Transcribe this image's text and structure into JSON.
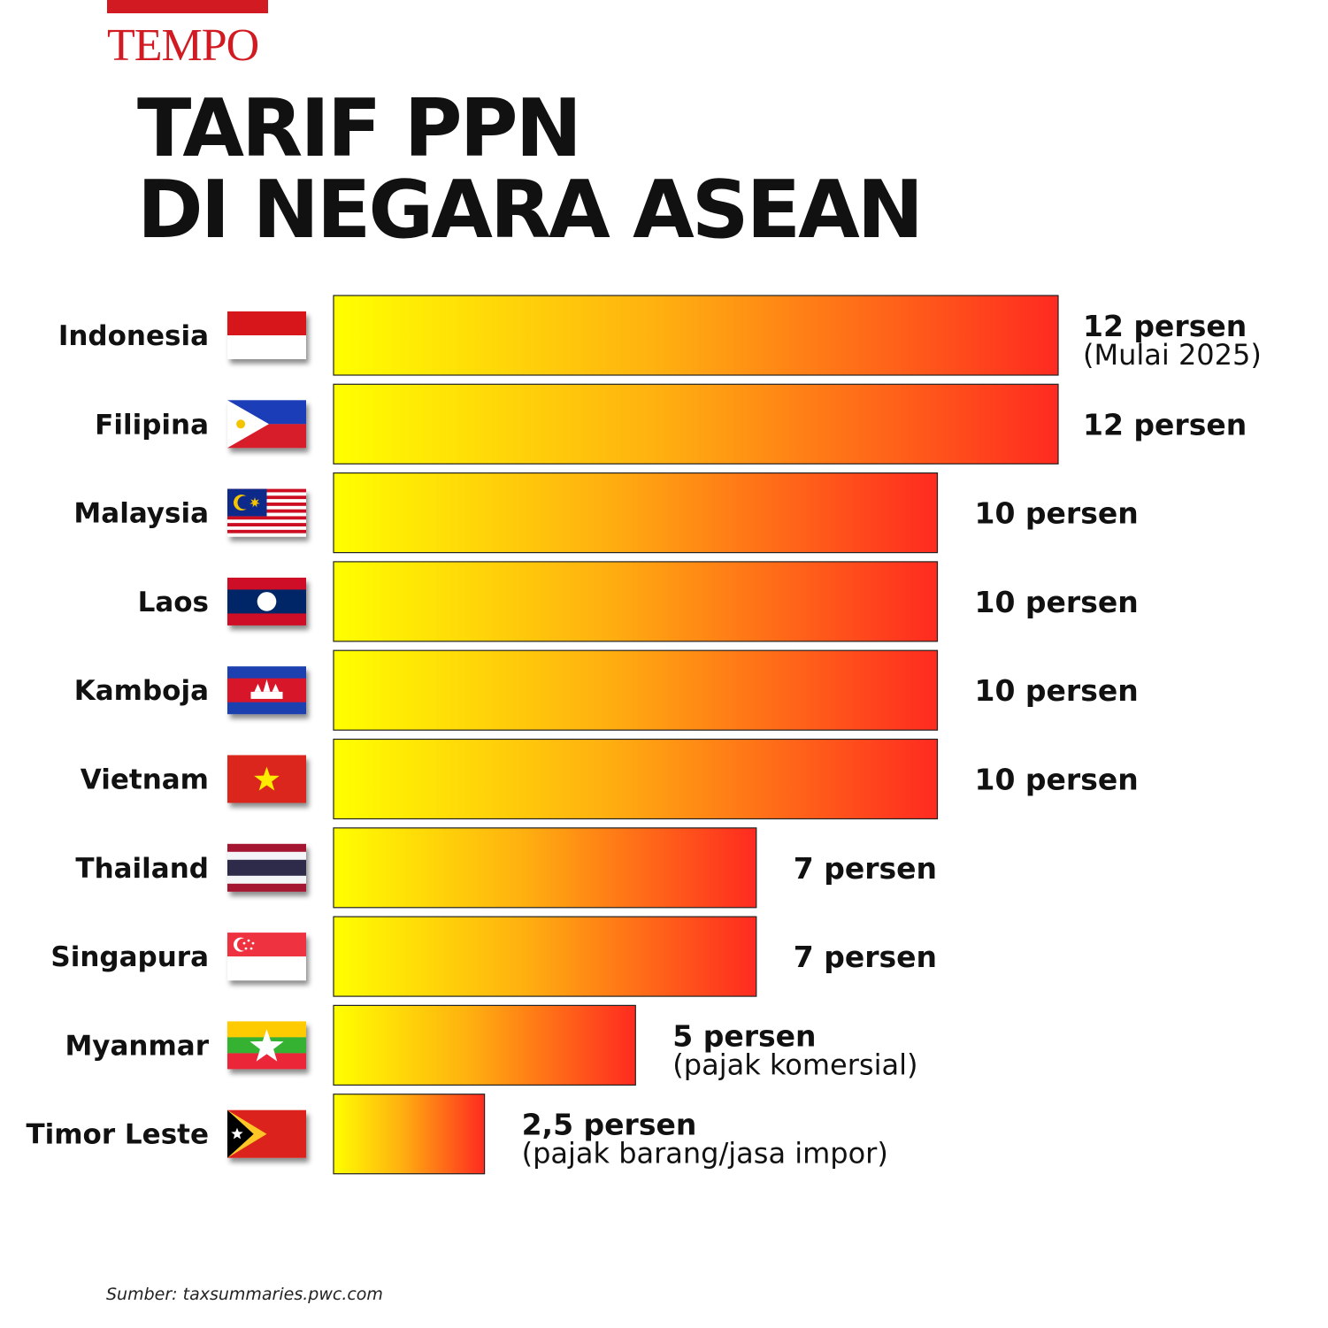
{
  "brand": {
    "name": "TEMPO",
    "color": "#d21a22"
  },
  "title_line1": "TARIF PPN",
  "title_line2": "DI NEGARA ASEAN",
  "source": "Sumber: taxsummaries.pwc.com",
  "colors": {
    "bar_start": "#ffff00",
    "bar_mid": "#ffb010",
    "bar_end": "#ff2a20",
    "bar_border": "#222222"
  },
  "chart_data": {
    "type": "bar",
    "orientation": "horizontal",
    "title": "TARIF PPN DI NEGARA ASEAN",
    "unit": "persen",
    "categories": [
      "Indonesia",
      "Filipina",
      "Malaysia",
      "Laos",
      "Kamboja",
      "Vietnam",
      "Thailand",
      "Singapura",
      "Myanmar",
      "Timor Leste"
    ],
    "values": [
      12,
      12,
      10,
      10,
      10,
      10,
      7,
      7,
      5,
      2.5
    ],
    "labels": [
      "12 persen",
      "12 persen",
      "10 persen",
      "10 persen",
      "10 persen",
      "10 persen",
      "7 persen",
      "7 persen",
      "5 persen",
      "2,5 persen"
    ],
    "notes": [
      "(Mulai 2025)",
      "",
      "",
      "",
      "",
      "",
      "",
      "",
      "(pajak komersial)",
      "(pajak barang/jasa impor)"
    ],
    "flags": [
      "indonesia-flag-icon",
      "philippines-flag-icon",
      "malaysia-flag-icon",
      "laos-flag-icon",
      "cambodia-flag-icon",
      "vietnam-flag-icon",
      "thailand-flag-icon",
      "singapore-flag-icon",
      "myanmar-flag-icon",
      "timor-leste-flag-icon"
    ],
    "xlim": [
      0,
      12
    ],
    "grid": false,
    "legend": "none"
  }
}
